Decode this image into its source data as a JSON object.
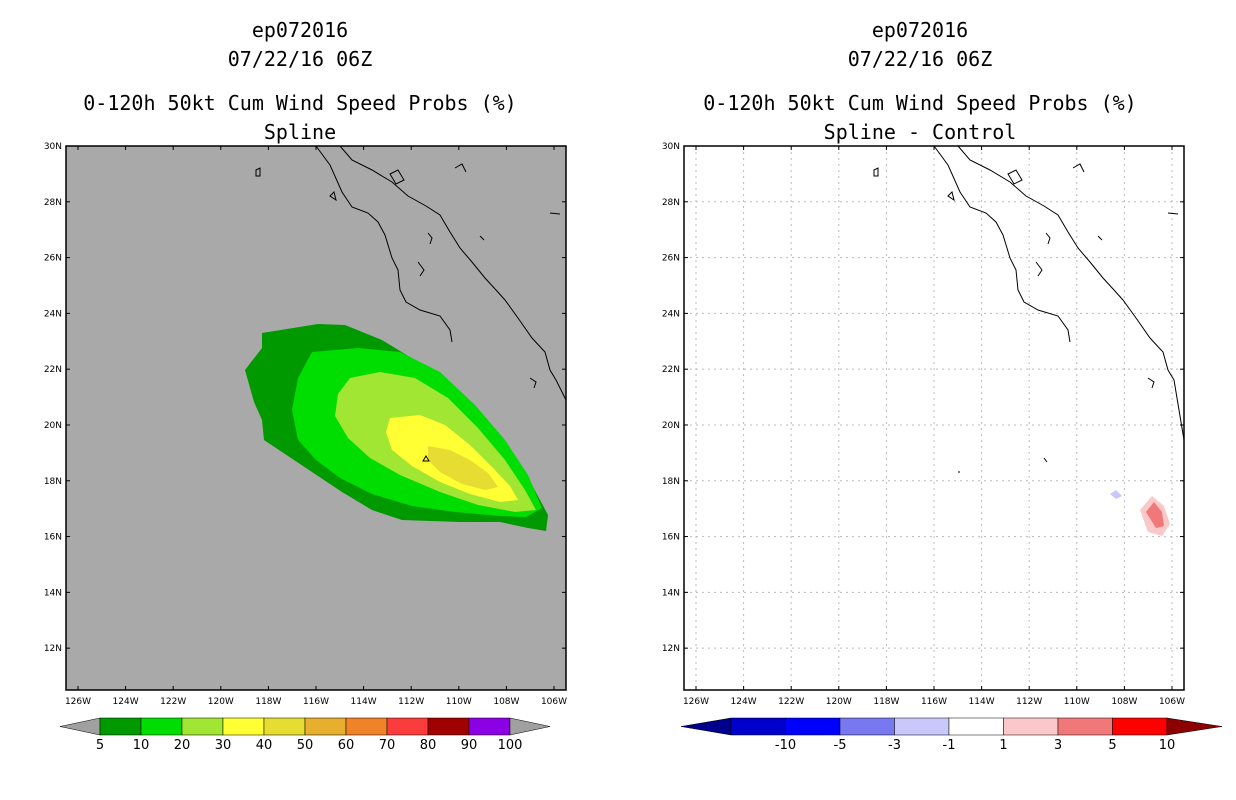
{
  "left_panel": {
    "storm_id": "ep072016",
    "datetime": "07/22/16 06Z",
    "product": "0-120h 50kt Cum Wind Speed Probs (%)",
    "method": "Spline",
    "lat_labels": [
      "30N",
      "28N",
      "26N",
      "24N",
      "22N",
      "20N",
      "18N",
      "16N",
      "14N",
      "12N"
    ],
    "lon_labels": [
      "126W",
      "124W",
      "122W",
      "120W",
      "118W",
      "116W",
      "114W",
      "112W",
      "110W",
      "108W",
      "106W"
    ],
    "colorbar": {
      "labels": [
        "5",
        "10",
        "20",
        "30",
        "40",
        "50",
        "60",
        "70",
        "80",
        "90",
        "100"
      ],
      "colors": [
        "#009900",
        "#00dd00",
        "#a0e632",
        "#ffff33",
        "#e6dc32",
        "#e6af2d",
        "#f08228",
        "#fa3c3c",
        "#a00000",
        "#8c00e6"
      ],
      "end_color": "#a0a0a0"
    },
    "background_color": "#a9a9a9"
  },
  "right_panel": {
    "storm_id": "ep072016",
    "datetime": "07/22/16 06Z",
    "product": "0-120h 50kt Cum Wind Speed Probs (%)",
    "method": "Spline - Control",
    "lat_labels": [
      "30N",
      "28N",
      "26N",
      "24N",
      "22N",
      "20N",
      "18N",
      "16N",
      "14N",
      "12N"
    ],
    "lon_labels": [
      "126W",
      "124W",
      "122W",
      "120W",
      "118W",
      "116W",
      "114W",
      "112W",
      "110W",
      "108W",
      "106W"
    ],
    "colorbar": {
      "labels": [
        "-10",
        "-5",
        "-3",
        "-1",
        "1",
        "3",
        "5",
        "10"
      ],
      "colors": [
        "#0000cc",
        "#0000ff",
        "#7878f0",
        "#c8c8fa",
        "#ffffff",
        "#fac8c8",
        "#f07878",
        "#ff0000"
      ],
      "end_left": "#00008c",
      "end_right": "#8c0000"
    }
  }
}
